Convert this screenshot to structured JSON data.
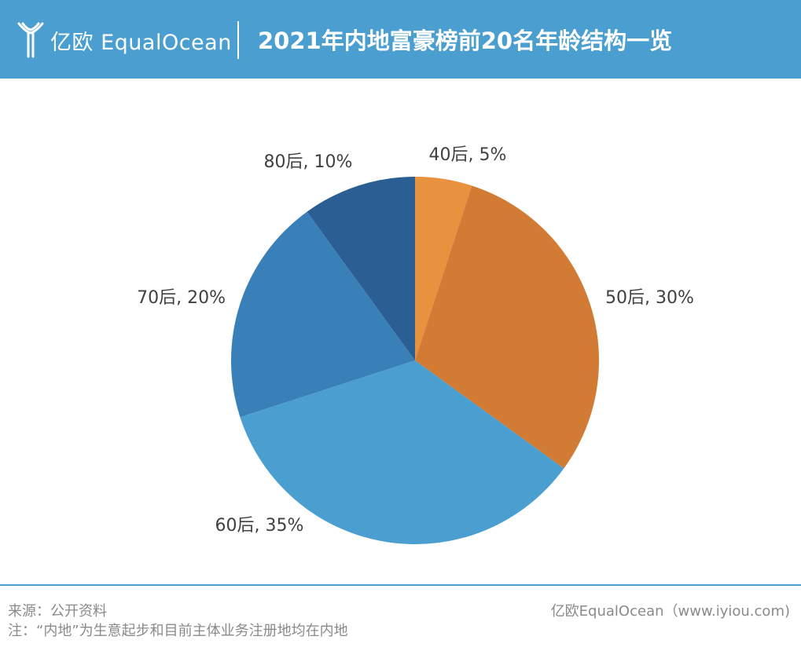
{
  "header": {
    "brand": "亿欧 EqualOcean",
    "title": "2021年内地富豪榜前20名年龄结构一览"
  },
  "chart_data": {
    "type": "pie",
    "categories": [
      "40后",
      "50后",
      "60后",
      "70后",
      "80后"
    ],
    "values": [
      5,
      30,
      35,
      20,
      10
    ],
    "labels": [
      "40后, 5%",
      "50后, 30%",
      "60后, 35%",
      "70后, 20%",
      "80后, 10%"
    ],
    "colors": [
      "#e8913f",
      "#d17b34",
      "#4a9fd0",
      "#3a80b8",
      "#2b5e93"
    ]
  },
  "footer": {
    "source": "来源：公开资料",
    "note": "注：“内地”为生意起步和目前主体业务注册地均在内地",
    "credit": "亿欧EqualOcean（www.iyiou.com)"
  }
}
